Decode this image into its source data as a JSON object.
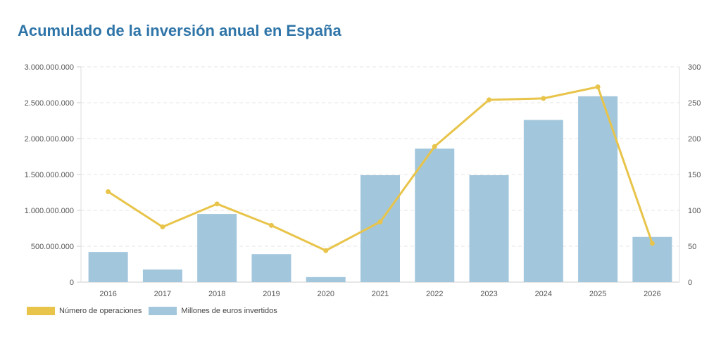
{
  "chart_data": {
    "type": "bar",
    "title": "Acumulado de la inversión anual en España",
    "categories": [
      "2016",
      "2017",
      "2018",
      "2019",
      "2020",
      "2021",
      "2022",
      "2023",
      "2024",
      "2025",
      "2026"
    ],
    "series": [
      {
        "name": "Millones de euros invertidos",
        "type": "bar",
        "axis": "left",
        "color": "#a2c6dc",
        "values": [
          420000000,
          175000000,
          950000000,
          390000000,
          70000000,
          1490000000,
          1860000000,
          1490000000,
          2260000000,
          2590000000,
          630000000
        ]
      },
      {
        "name": "Número de operaciones",
        "type": "line",
        "axis": "right",
        "color": "#e8c44a",
        "values": [
          126,
          77,
          109,
          79,
          44,
          84,
          189,
          254,
          256,
          272,
          54
        ]
      }
    ],
    "left_axis": {
      "ylim": [
        0,
        3000000000
      ],
      "ticks": [
        "0",
        "500.000.000",
        "1.000.000.000",
        "1.500.000.000",
        "2.000.000.000",
        "2.500.000.000",
        "3.000.000.000"
      ]
    },
    "right_axis": {
      "ylim": [
        0,
        300
      ],
      "ticks": [
        "0",
        "50",
        "100",
        "150",
        "200",
        "250",
        "300"
      ]
    },
    "grid": true,
    "legend": "bottom-left"
  }
}
